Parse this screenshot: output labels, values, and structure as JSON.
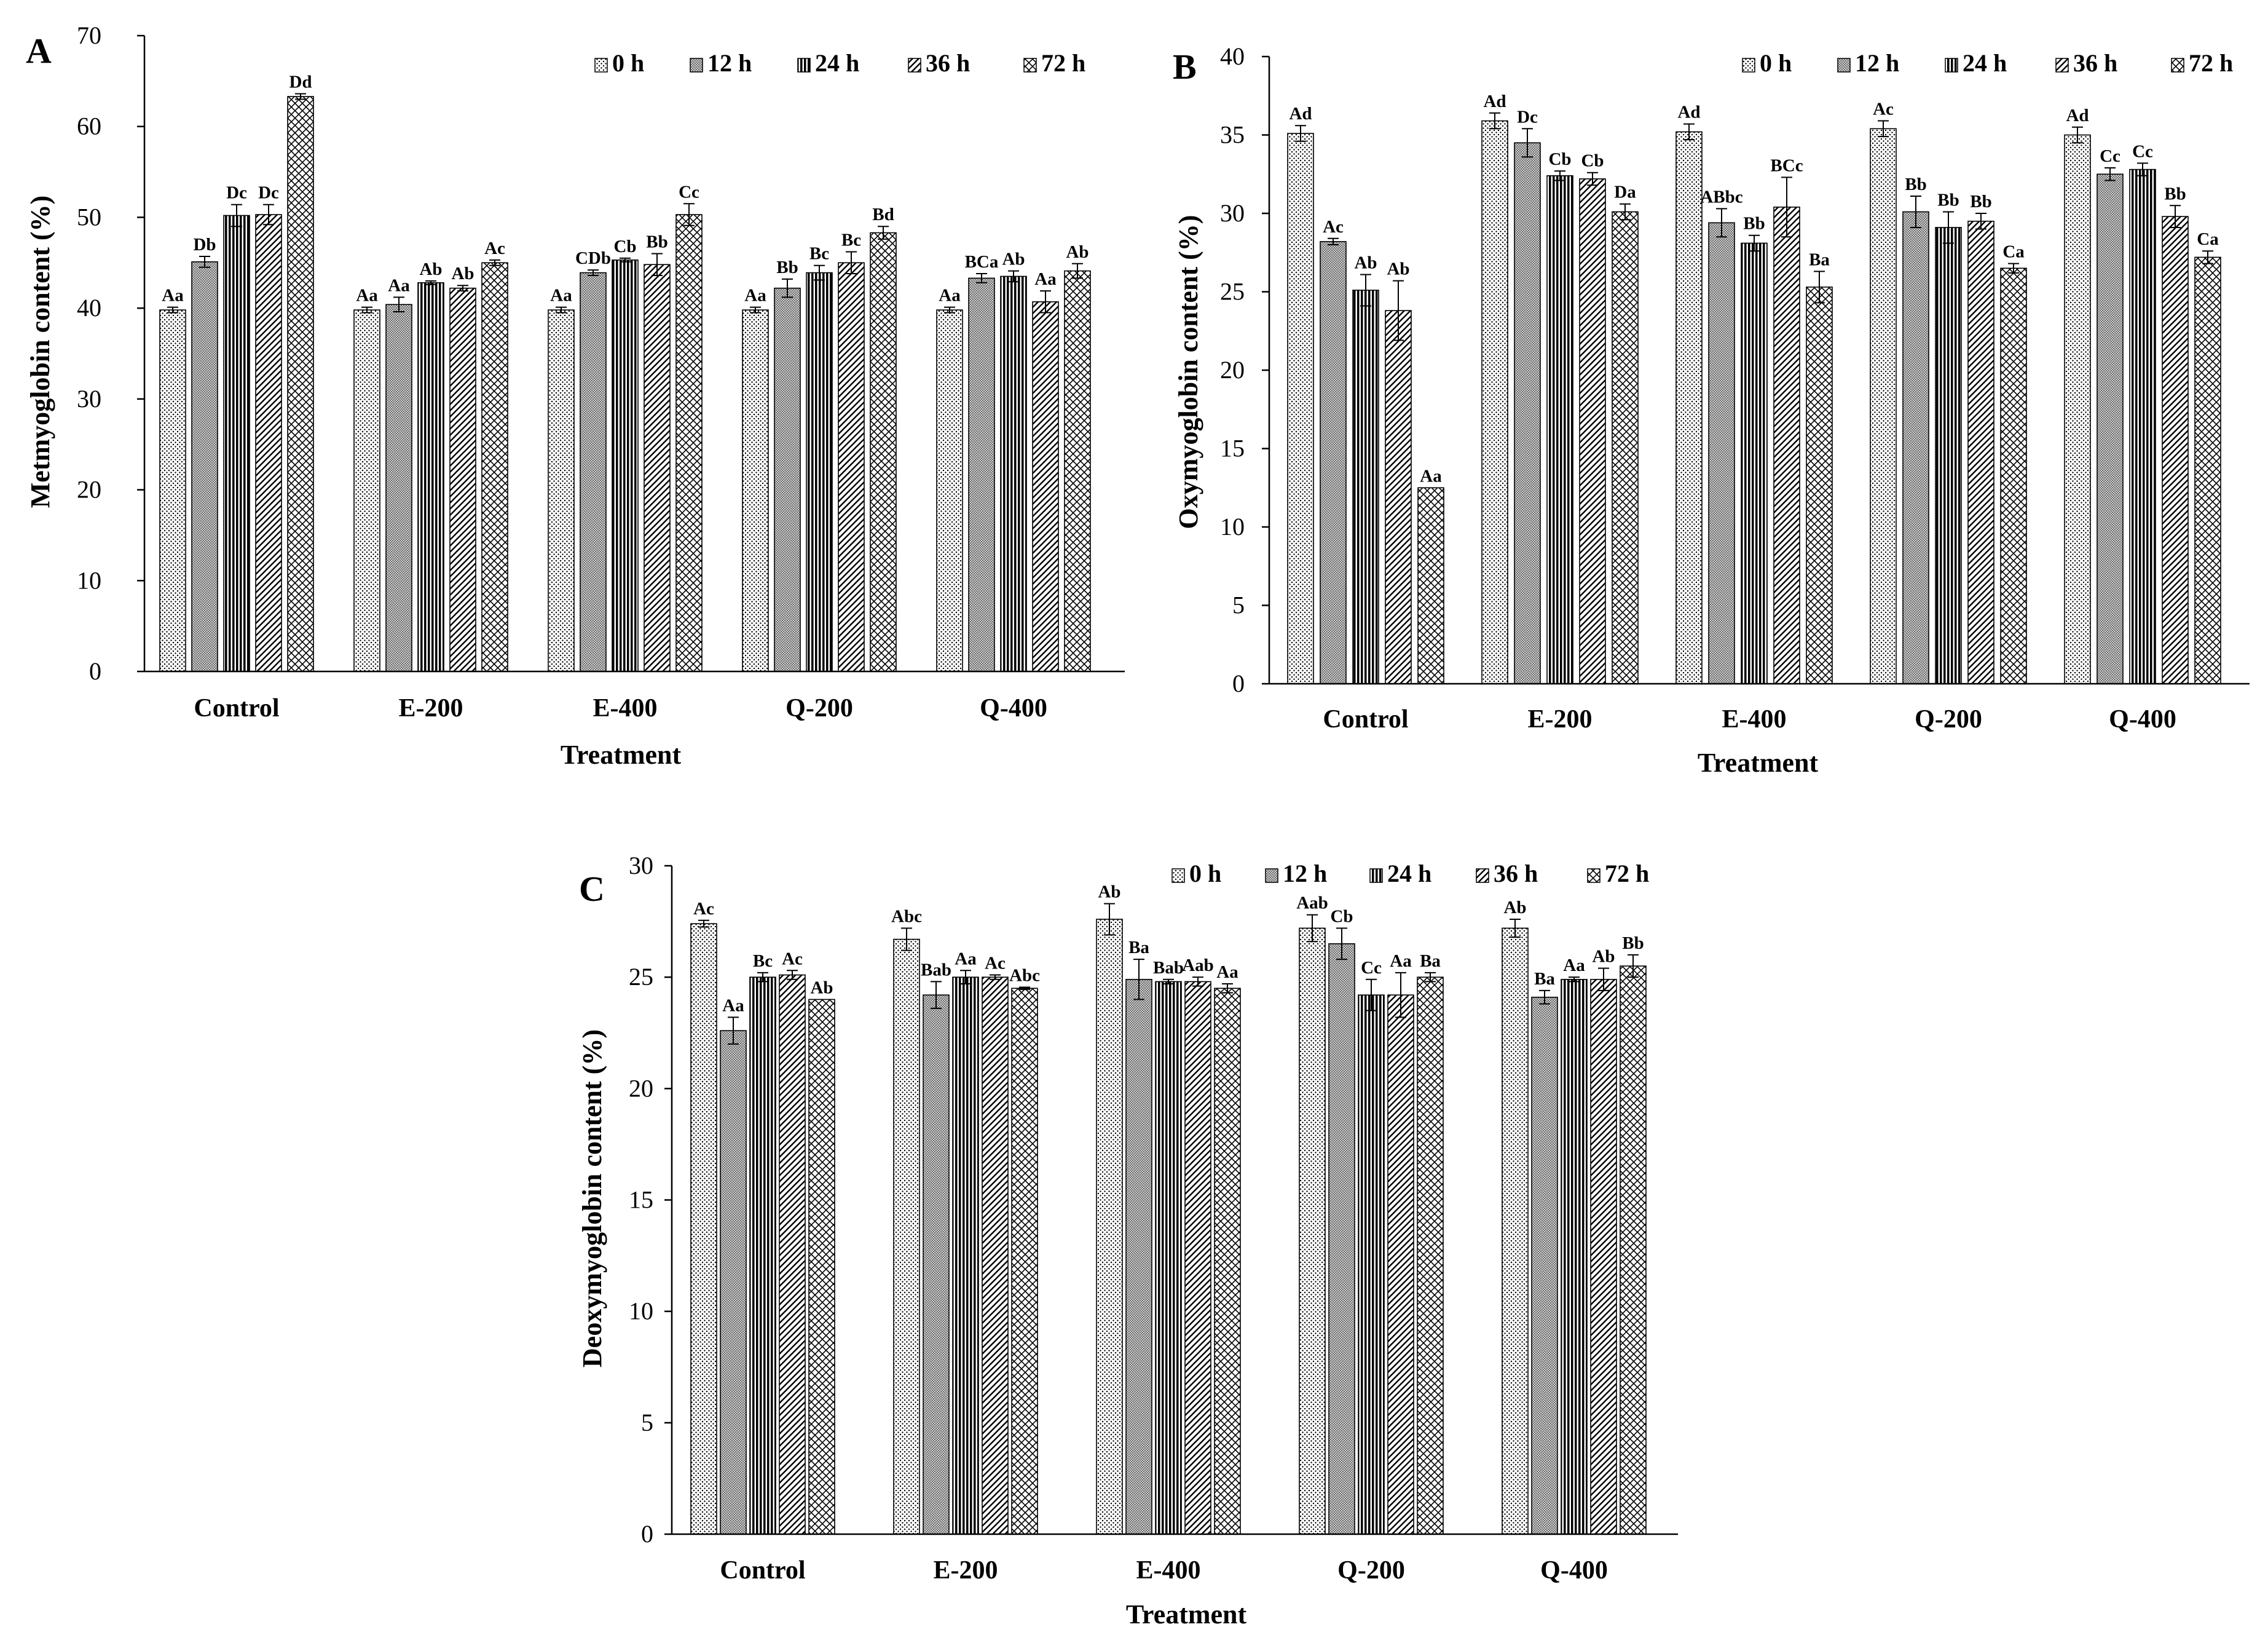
{
  "legend": [
    {
      "label": "0 h",
      "pattern": "dots"
    },
    {
      "label": "12 h",
      "pattern": "fine"
    },
    {
      "label": "24 h",
      "pattern": "vert"
    },
    {
      "label": "36 h",
      "pattern": "diag"
    },
    {
      "label": "72 h",
      "pattern": "cross"
    }
  ],
  "chart_data": [
    {
      "panel": "A",
      "type": "bar",
      "ylabel": "Metmyoglobin content (%)",
      "xlabel": "Treatment",
      "ylim": [
        0,
        70
      ],
      "yticks": [
        0,
        10,
        20,
        30,
        40,
        50,
        60,
        70
      ],
      "categories": [
        "Control",
        "E-200",
        "E-400",
        "Q-200",
        "Q-400"
      ],
      "series": [
        {
          "name": "0 h",
          "values": [
            39.8,
            39.8,
            39.8,
            39.8,
            39.8
          ],
          "errors": [
            0.3,
            0.3,
            0.3,
            0.3,
            0.3
          ],
          "labels": [
            "Aa",
            "Aa",
            "Aa",
            "Aa",
            "Aa"
          ]
        },
        {
          "name": "12 h",
          "values": [
            45.1,
            40.4,
            43.9,
            42.2,
            43.3
          ],
          "errors": [
            0.6,
            0.8,
            0.3,
            1.0,
            0.5
          ],
          "labels": [
            "Db",
            "Aa",
            "CDb",
            "Bb",
            "BCa"
          ]
        },
        {
          "name": "24 h",
          "values": [
            50.2,
            42.8,
            45.3,
            43.9,
            43.5
          ],
          "errors": [
            1.2,
            0.2,
            0.2,
            0.8,
            0.6
          ],
          "labels": [
            "Dc",
            "Ab",
            "Cb",
            "Bc",
            "Ab"
          ]
        },
        {
          "name": "36 h",
          "values": [
            50.3,
            42.2,
            44.8,
            45.0,
            40.7
          ],
          "errors": [
            1.1,
            0.3,
            1.2,
            1.2,
            1.2
          ],
          "labels": [
            "Dc",
            "Ab",
            "Bb",
            "Bc",
            "Aa"
          ]
        },
        {
          "name": "72 h",
          "values": [
            63.3,
            45.0,
            50.3,
            48.3,
            44.1
          ],
          "errors": [
            0.3,
            0.3,
            1.2,
            0.7,
            0.8
          ],
          "labels": [
            "Dd",
            "Ac",
            "Cc",
            "Bd",
            "Ab"
          ]
        }
      ]
    },
    {
      "panel": "B",
      "type": "bar",
      "ylabel": "Oxymyoglobin content (%)",
      "xlabel": "Treatment",
      "ylim": [
        0,
        40
      ],
      "yticks": [
        0,
        5,
        10,
        15,
        20,
        25,
        30,
        35,
        40
      ],
      "categories": [
        "Control",
        "E-200",
        "E-400",
        "Q-200",
        "Q-400"
      ],
      "series": [
        {
          "name": "0 h",
          "values": [
            35.1,
            35.9,
            35.2,
            35.4,
            35.0
          ],
          "errors": [
            0.5,
            0.5,
            0.5,
            0.5,
            0.5
          ],
          "labels": [
            "Ad",
            "Ad",
            "Ad",
            "Ac",
            "Ad"
          ]
        },
        {
          "name": "12 h",
          "values": [
            28.2,
            34.5,
            29.4,
            30.1,
            32.5
          ],
          "errors": [
            0.2,
            0.9,
            0.9,
            1.0,
            0.4
          ],
          "labels": [
            "Ac",
            "Dc",
            "ABbc",
            "Bb",
            "Cc"
          ]
        },
        {
          "name": "24 h",
          "values": [
            25.1,
            32.4,
            28.1,
            29.1,
            32.8
          ],
          "errors": [
            1.0,
            0.3,
            0.5,
            1.0,
            0.4
          ],
          "labels": [
            "Ab",
            "Cb",
            "Bb",
            "Bb",
            "Cc"
          ]
        },
        {
          "name": "36 h",
          "values": [
            23.8,
            32.2,
            30.4,
            29.5,
            29.8
          ],
          "errors": [
            1.9,
            0.4,
            1.9,
            0.5,
            0.7
          ],
          "labels": [
            "Ab",
            "Cb",
            "BCc",
            "Bb",
            "Bb"
          ]
        },
        {
          "name": "72 h",
          "values": [
            12.5,
            30.1,
            25.3,
            26.5,
            27.2
          ],
          "errors": [
            0.0,
            0.5,
            1.0,
            0.3,
            0.4
          ],
          "labels": [
            "Aa",
            "Da",
            "Ba",
            "Ca",
            "Ca"
          ]
        }
      ]
    },
    {
      "panel": "C",
      "type": "bar",
      "ylabel": "Deoxymyoglobin content (%)",
      "xlabel": "Treatment",
      "ylim": [
        0,
        30
      ],
      "yticks": [
        0,
        5,
        10,
        15,
        20,
        25,
        30
      ],
      "categories": [
        "Control",
        "E-200",
        "E-400",
        "Q-200",
        "Q-400"
      ],
      "series": [
        {
          "name": "0 h",
          "values": [
            27.4,
            26.7,
            27.6,
            27.2,
            27.2
          ],
          "errors": [
            0.15,
            0.5,
            0.7,
            0.6,
            0.4
          ],
          "labels": [
            "Ac",
            "Abc",
            "Ab",
            "Aab",
            "Ab"
          ]
        },
        {
          "name": "12 h",
          "values": [
            22.6,
            24.2,
            24.9,
            26.5,
            24.1
          ],
          "errors": [
            0.6,
            0.6,
            0.9,
            0.7,
            0.3
          ],
          "labels": [
            "Aa",
            "Bab",
            "Ba",
            "Cb",
            "Ba"
          ]
        },
        {
          "name": "24 h",
          "values": [
            25.0,
            25.0,
            24.8,
            24.2,
            24.9
          ],
          "errors": [
            0.2,
            0.3,
            0.1,
            0.7,
            0.1
          ],
          "labels": [
            "Bc",
            "Aa",
            "Bab",
            "Cc",
            "Aa"
          ]
        },
        {
          "name": "36 h",
          "values": [
            25.1,
            25.0,
            24.8,
            24.2,
            24.9
          ],
          "errors": [
            0.2,
            0.1,
            0.2,
            1.0,
            0.5
          ],
          "labels": [
            "Ac",
            "Ac",
            "Aab",
            "Aa",
            "Ab"
          ]
        },
        {
          "name": "72 h",
          "values": [
            24.0,
            24.5,
            24.5,
            25.0,
            25.5
          ],
          "errors": [
            0.0,
            0.05,
            0.2,
            0.2,
            0.5
          ],
          "labels": [
            "Ab",
            "Abc",
            "Aa",
            "Ba",
            "Bb"
          ]
        }
      ]
    }
  ]
}
